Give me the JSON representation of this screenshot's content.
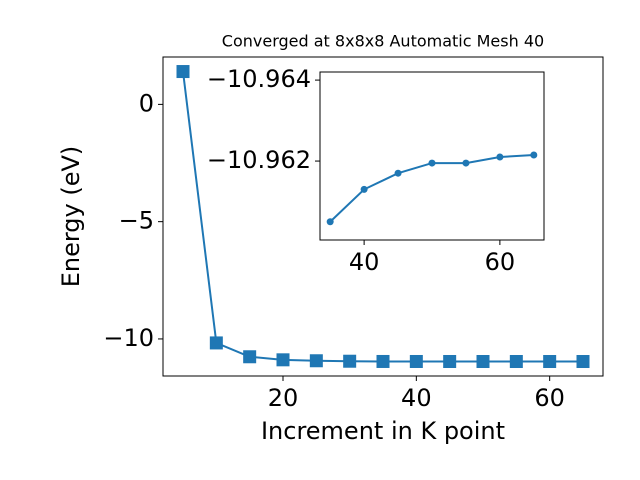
{
  "chart_data": [
    {
      "type": "line",
      "title": "Converged at 8x8x8 Automatic Mesh 40",
      "x_label": "Increment in K point",
      "y_label": "Energy (eV)",
      "x": [
        5,
        10,
        15,
        20,
        25,
        30,
        35,
        40,
        45,
        50,
        55,
        60,
        65
      ],
      "series": [
        {
          "name": "Energy",
          "color": "#1f77b4",
          "marker": "square",
          "values": [
            1.4,
            -10.17,
            -10.76,
            -10.89,
            -10.93,
            -10.95,
            -10.9605,
            -10.9613,
            -10.9617,
            -10.96195,
            -10.96195,
            -10.9621,
            -10.96215
          ]
        }
      ],
      "xlim": [
        2,
        68
      ],
      "ylim": [
        -11.58,
        2.02
      ],
      "xticks": [
        20,
        40,
        60
      ],
      "yticks": [
        {
          "value": -10,
          "label": "−10"
        },
        {
          "value": -5,
          "label": "−5"
        },
        0
      ]
    },
    {
      "type": "line",
      "x": [
        35,
        40,
        45,
        50,
        55,
        60,
        65
      ],
      "series": [
        {
          "name": "Energy",
          "color": "#1f77b4",
          "marker": "circle",
          "values": [
            -10.9605,
            -10.9613,
            -10.9617,
            -10.96195,
            -10.96195,
            -10.9621,
            -10.96215
          ]
        }
      ],
      "xlim": [
        33.5,
        66.5
      ],
      "ylim": [
        -10.96005,
        -10.9642
      ],
      "xticks": [
        40,
        60
      ],
      "yticks": [
        {
          "value": -10.964,
          "label": "−10.964"
        },
        {
          "value": -10.962,
          "label": "−10.962"
        }
      ]
    }
  ]
}
